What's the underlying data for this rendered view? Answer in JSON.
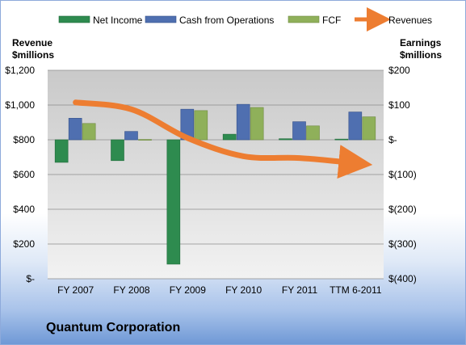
{
  "company": "Quantum Corporation",
  "legend": [
    "Net Income",
    "Cash from Operations",
    "FCF",
    "Revenues"
  ],
  "colors": {
    "net_income": "#2e8b4f",
    "cash_from_operations": "#4f6fb0",
    "fcf": "#8fb05a",
    "revenues": "#ed7d31",
    "plot_top": "#c9c9c9",
    "plot_bottom": "#f2f2f2"
  },
  "chart_data": {
    "type": "bar",
    "categories": [
      "FY 2007",
      "FY 2008",
      "FY 2009",
      "FY 2010",
      "FY 2011",
      "TTM 6-2011"
    ],
    "left_axis": {
      "title_line1": "Revenue",
      "title_line2": "$millions",
      "ylim": [
        0,
        1200
      ],
      "ticks": [
        0,
        200,
        400,
        600,
        800,
        1000,
        1200
      ],
      "tick_labels": [
        "$-",
        "$200",
        "$400",
        "$600",
        "$800",
        "$1,000",
        "$1,200"
      ]
    },
    "right_axis": {
      "title_line1": "Earnings",
      "title_line2": "$millions",
      "ylim": [
        -400,
        200
      ],
      "ticks": [
        -400,
        -300,
        -200,
        -100,
        0,
        100,
        200
      ],
      "tick_labels": [
        "$(400)",
        "$(300)",
        "$(200)",
        "$(100)",
        "$-",
        "$100",
        "$200"
      ]
    },
    "grid": true,
    "legend_position": "top",
    "series": [
      {
        "name": "Net Income",
        "axis": "right",
        "type": "bar",
        "values": [
          -65,
          -60,
          -358,
          16,
          3,
          2
        ]
      },
      {
        "name": "Cash from Operations",
        "axis": "right",
        "type": "bar",
        "values": [
          62,
          24,
          88,
          102,
          52,
          80
        ]
      },
      {
        "name": "FCF",
        "axis": "right",
        "type": "bar",
        "values": [
          47,
          1,
          84,
          93,
          40,
          66
        ]
      },
      {
        "name": "Revenues",
        "axis": "left",
        "type": "line",
        "values": [
          1015,
          975,
          810,
          705,
          695,
          665
        ]
      }
    ]
  }
}
